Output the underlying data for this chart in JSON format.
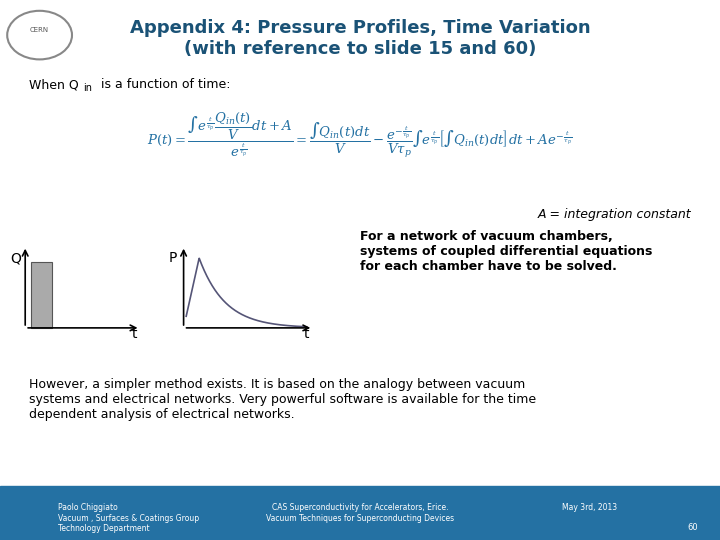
{
  "title_line1": "Appendix 4: Pressure Profiles, Time Variation",
  "title_line2": "(with reference to slide 15 and 60)",
  "title_color": "#1a5276",
  "title_fontsize": 13,
  "bg_color": "#ffffff",
  "footer_bg": "#2471a3",
  "footer_text_color": "#ffffff",
  "footer_left": "Paolo Chiggiato\nVacuum , Surfaces & Coatings Group\nTechnology Department",
  "footer_center": "CAS Superconductivity for Accelerators, Erice.\nVacuum Techniques for Superconducting Devices",
  "footer_right": "May 3rd, 2013",
  "footer_page": "60",
  "when_text": "When Q",
  "when_sub": "in",
  "when_rest": " is a function of time:",
  "formula_label": "A = integration constant",
  "network_text": "For a network of vacuum chambers,\nsystems of coupled differential equations\nfor each chamber have to be solved.",
  "bottom_text": "However, a simpler method exists. It is based on the analogy between vacuum\nsystems and electrical networks. Very powerful software is available for the time\ndependent analysis of electrical networks.",
  "text_color": "#000000",
  "blue_color": "#2471a3",
  "body_text_fontsize": 9,
  "network_fontsize": 9
}
